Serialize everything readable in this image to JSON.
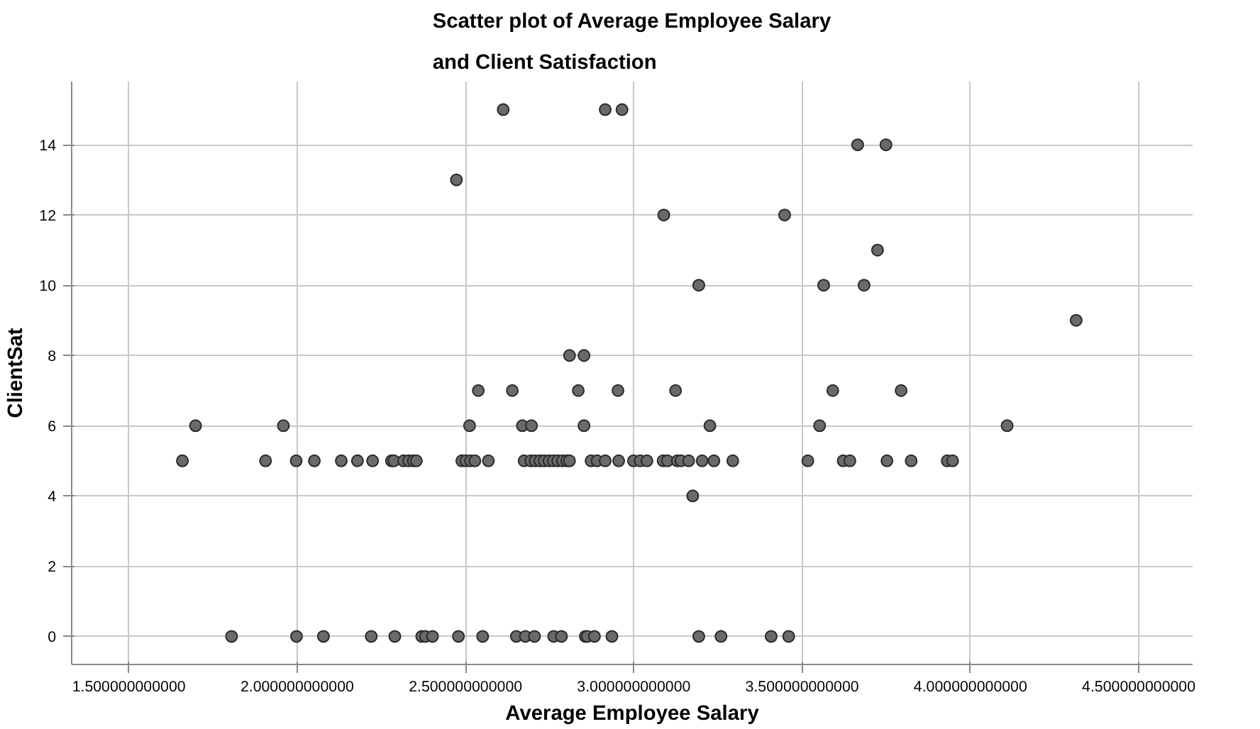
{
  "chart_data": {
    "type": "scatter",
    "title": "Scatter plot of Average Employee Salary\nand Client Satisfaction",
    "xlabel": "Average Employee Salary",
    "ylabel": "ClientSat",
    "xlim": [
      1.33,
      4.66
    ],
    "ylim": [
      -0.8,
      15.8
    ],
    "xticks": [
      {
        "value": 1.5,
        "label": "1.500000000000"
      },
      {
        "value": 2.0,
        "label": "2.000000000000"
      },
      {
        "value": 2.5,
        "label": "2.500000000000"
      },
      {
        "value": 3.0,
        "label": "3.000000000000"
      },
      {
        "value": 3.5,
        "label": "3.500000000000"
      },
      {
        "value": 4.0,
        "label": "4.000000000000"
      },
      {
        "value": 4.5,
        "label": "4.500000000000"
      }
    ],
    "yticks": [
      0,
      2,
      4,
      6,
      8,
      10,
      12,
      14
    ],
    "grid": true,
    "marker": "circle",
    "series": [
      {
        "color": "#6a6a6a",
        "x": [
          2.612,
          2.915,
          2.965,
          3.665,
          3.749,
          2.473,
          3.089,
          3.448,
          3.724,
          3.193,
          3.564,
          3.684,
          4.314,
          2.809,
          2.852,
          2.538,
          2.639,
          2.835,
          2.953,
          3.124,
          3.591,
          3.794,
          1.698,
          1.959,
          2.512,
          2.669,
          2.696,
          2.852,
          3.226,
          3.552,
          4.109,
          1.659,
          1.906,
          1.997,
          2.051,
          2.131,
          2.179,
          2.224,
          2.28,
          2.287,
          2.316,
          2.331,
          2.345,
          2.354,
          2.489,
          2.501,
          2.515,
          2.528,
          2.568,
          2.674,
          2.694,
          2.707,
          2.721,
          2.734,
          2.748,
          2.761,
          2.774,
          2.788,
          2.801,
          2.809,
          2.873,
          2.891,
          2.915,
          2.955,
          2.999,
          3.019,
          3.039,
          3.087,
          3.1,
          3.129,
          3.14,
          3.163,
          3.203,
          3.238,
          3.294,
          3.517,
          3.622,
          3.642,
          3.752,
          3.824,
          3.931,
          3.947,
          3.175,
          1.805,
          1.998,
          2.078,
          2.22,
          2.29,
          2.37,
          2.381,
          2.402,
          2.479,
          2.551,
          2.651,
          2.678,
          2.705,
          2.762,
          2.785,
          2.856,
          2.862,
          2.883,
          2.935,
          3.193,
          3.259,
          3.408,
          3.46
        ],
        "values": [
          15,
          15,
          15,
          14,
          14,
          13,
          12,
          12,
          11,
          10,
          10,
          10,
          9,
          8,
          8,
          7,
          7,
          7,
          7,
          7,
          7,
          7,
          6,
          6,
          6,
          6,
          6,
          6,
          6,
          6,
          6,
          5,
          5,
          5,
          5,
          5,
          5,
          5,
          5,
          5,
          5,
          5,
          5,
          5,
          5,
          5,
          5,
          5,
          5,
          5,
          5,
          5,
          5,
          5,
          5,
          5,
          5,
          5,
          5,
          5,
          5,
          5,
          5,
          5,
          5,
          5,
          5,
          5,
          5,
          5,
          5,
          5,
          5,
          5,
          5,
          5,
          5,
          5,
          5,
          5,
          5,
          5,
          4,
          0,
          0,
          0,
          0,
          0,
          0,
          0,
          0,
          0,
          0,
          0,
          0,
          0,
          0,
          0,
          0,
          0,
          0,
          0,
          0,
          0,
          0,
          0
        ]
      }
    ]
  }
}
